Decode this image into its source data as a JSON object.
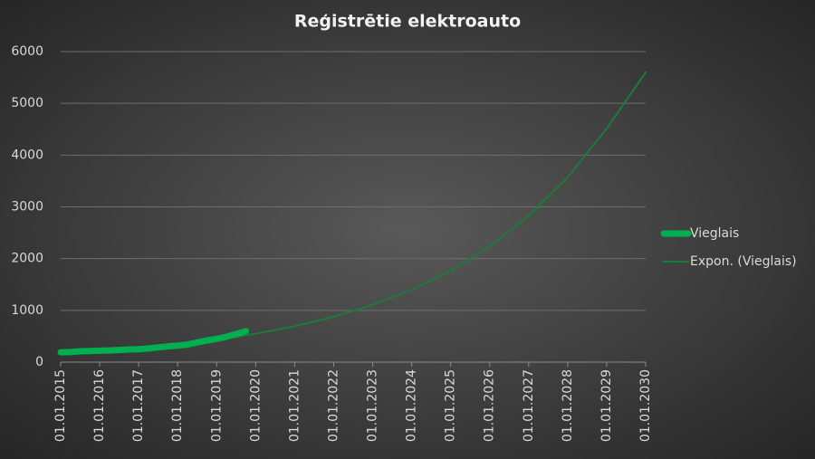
{
  "chart_data": {
    "type": "line",
    "title": "Reģistrētie elektroauto",
    "series": [
      {
        "name": "Vieglais",
        "color": "#00b050",
        "width": 7,
        "x": [
          2015.0,
          2015.25,
          2015.5,
          2015.75,
          2016.0,
          2016.25,
          2016.5,
          2016.75,
          2017.0,
          2017.25,
          2017.5,
          2017.75,
          2018.0,
          2018.25,
          2018.5,
          2018.75,
          2019.0,
          2019.25,
          2019.5,
          2019.75
        ],
        "values": [
          190,
          195,
          210,
          215,
          220,
          225,
          235,
          245,
          250,
          265,
          285,
          305,
          320,
          340,
          380,
          420,
          450,
          490,
          540,
          600
        ]
      },
      {
        "name": "Expon. (Vieglais)",
        "color": "#1e7a3c",
        "width": 2,
        "x": [
          2015,
          2016,
          2017,
          2018,
          2019,
          2020,
          2021,
          2022,
          2023,
          2024,
          2025,
          2026,
          2027,
          2028,
          2029,
          2030
        ],
        "values": [
          170,
          215,
          272,
          343,
          434,
          548,
          693,
          876,
          1107,
          1399,
          1768,
          2235,
          2825,
          3570,
          4512,
          5600
        ]
      }
    ],
    "xlim": [
      2015,
      2030
    ],
    "xticks": [
      {
        "value": 2015,
        "label": "01.01.2015"
      },
      {
        "value": 2016,
        "label": "01.01.2016"
      },
      {
        "value": 2017,
        "label": "01.01.2017"
      },
      {
        "value": 2018,
        "label": "01.01.2018"
      },
      {
        "value": 2019,
        "label": "01.01.2019"
      },
      {
        "value": 2020,
        "label": "01.01.2020"
      },
      {
        "value": 2021,
        "label": "01.01.2021"
      },
      {
        "value": 2022,
        "label": "01.01.2022"
      },
      {
        "value": 2023,
        "label": "01.01.2023"
      },
      {
        "value": 2024,
        "label": "01.01.2024"
      },
      {
        "value": 2025,
        "label": "01.01.2025"
      },
      {
        "value": 2026,
        "label": "01.01.2026"
      },
      {
        "value": 2027,
        "label": "01.01.2027"
      },
      {
        "value": 2028,
        "label": "01.01.2028"
      },
      {
        "value": 2029,
        "label": "01.01.2029"
      },
      {
        "value": 2030,
        "label": "01.01.2030"
      }
    ],
    "ylim": [
      0,
      6000
    ],
    "yticks": [
      0,
      1000,
      2000,
      3000,
      4000,
      5000,
      6000
    ],
    "grid": true,
    "legend": "right"
  }
}
